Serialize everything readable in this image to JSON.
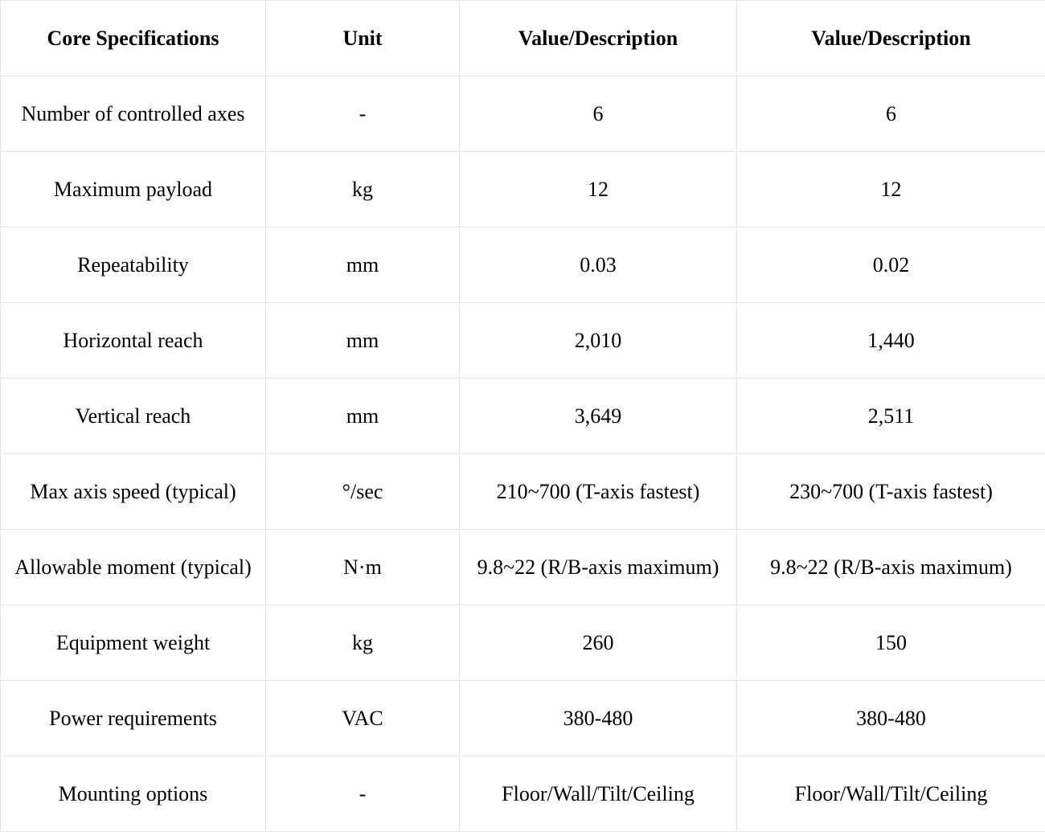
{
  "table": {
    "header": [
      "Core Specifications",
      "Unit",
      "Value/Description",
      "Value/Description"
    ],
    "rows": [
      [
        "Number of controlled axes",
        "-",
        "6",
        "6"
      ],
      [
        "Maximum payload",
        "kg",
        "12",
        "12"
      ],
      [
        "Repeatability",
        "mm",
        "0.03",
        "0.02"
      ],
      [
        "Horizontal reach",
        "mm",
        "2,010",
        "1,440"
      ],
      [
        "Vertical reach",
        "mm",
        "3,649",
        "2,511"
      ],
      [
        "Max axis speed (typical)",
        "°/sec",
        "210~700 (T-axis fastest)",
        "230~700 (T-axis fastest)"
      ],
      [
        "Allowable moment (typical)",
        "N·m",
        "9.8~22 (R/B-axis maximum)",
        "9.8~22 (R/B-axis maximum)"
      ],
      [
        "Equipment weight",
        "kg",
        "260",
        "150"
      ],
      [
        "Power requirements",
        "VAC",
        "380-480",
        "380-480"
      ],
      [
        "Mounting options",
        "-",
        "Floor/Wall/Tilt/Ceiling",
        "Floor/Wall/Tilt/Ceiling"
      ]
    ]
  }
}
